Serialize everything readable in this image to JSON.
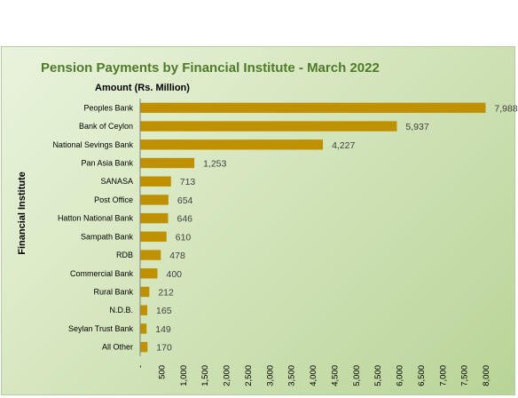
{
  "chart_data": {
    "type": "bar",
    "orientation": "horizontal",
    "title": "Pension Payments by Financial  Institute - March 2022",
    "value_axis_label": "Amount (Rs. Million)",
    "category_axis_label": "Financial Institute",
    "categories": [
      "Peoples Bank",
      "Bank of Ceylon",
      "National Sevings Bank",
      "Pan Asia Bank",
      "SANASA",
      "Post Office",
      "Hatton National Bank",
      "Sampath Bank",
      "RDB",
      "Commercial Bank",
      "Rural Bank",
      "N.D.B.",
      "Seylan Trust Bank",
      "All Other"
    ],
    "values": [
      7988,
      5937,
      4227,
      1253,
      713,
      654,
      646,
      610,
      478,
      400,
      212,
      165,
      149,
      170
    ],
    "value_labels": [
      "7,988",
      "5,937",
      "4,227",
      "1,253",
      "713",
      "654",
      "646",
      "610",
      "478",
      "400",
      "212",
      "165",
      "149",
      "170"
    ],
    "xlim": [
      0,
      8000
    ],
    "ticks": [
      0,
      500,
      1000,
      1500,
      2000,
      2500,
      3000,
      3500,
      4000,
      4500,
      5000,
      5500,
      6000,
      6500,
      7000,
      7500,
      8000
    ],
    "tick_labels": [
      "-",
      "500",
      "1,000",
      "1,500",
      "2,000",
      "2,500",
      "3,000",
      "3,500",
      "4,000",
      "4,500",
      "5,000",
      "5,500",
      "6,000",
      "6,500",
      "7,000",
      "7,500",
      "8,000"
    ],
    "grid": false,
    "legend": "none",
    "bar_color": "#bf9000"
  }
}
